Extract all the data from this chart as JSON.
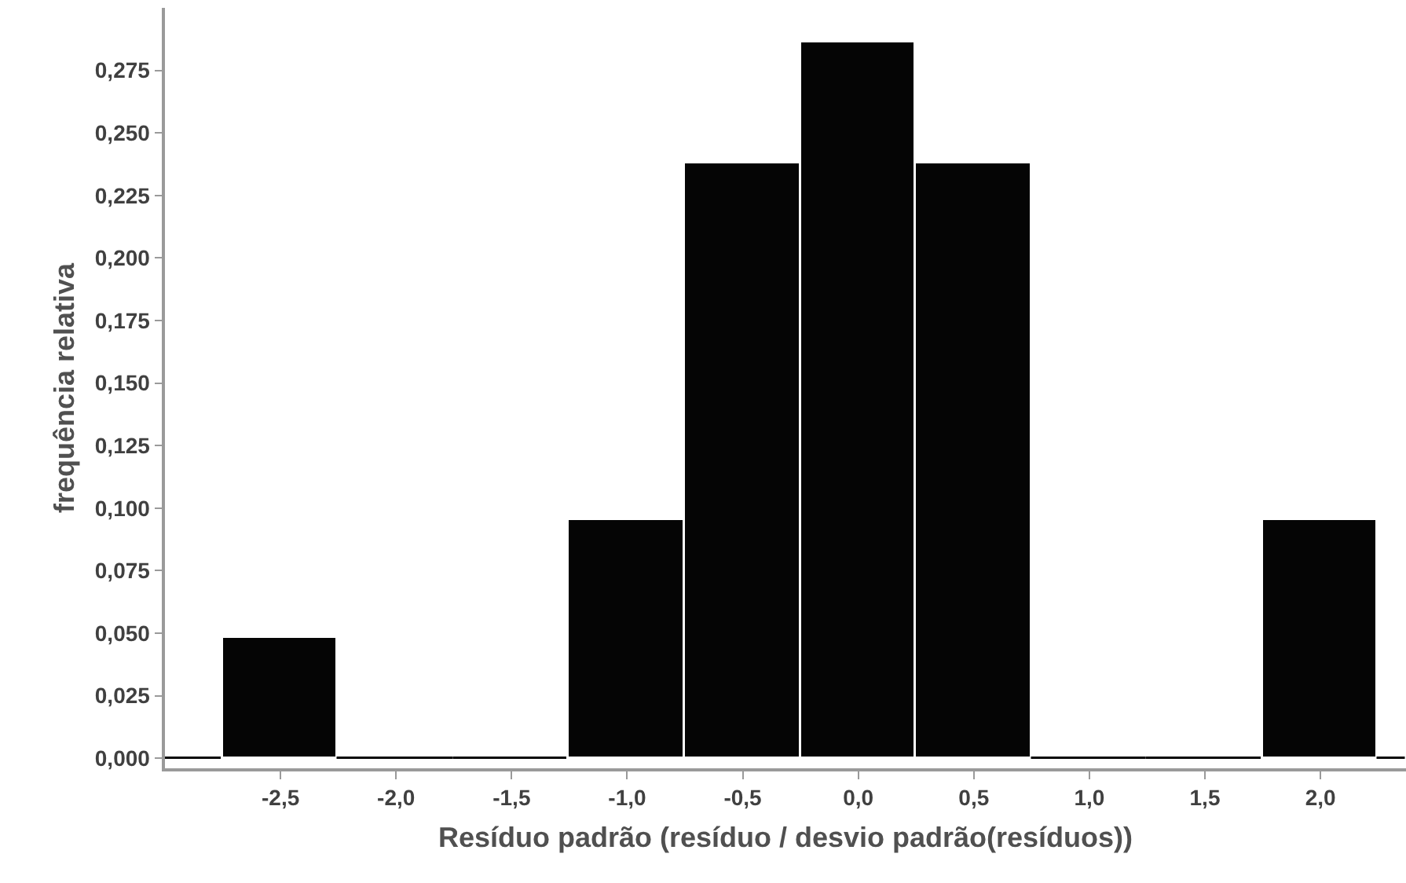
{
  "chart_data": {
    "type": "histogram",
    "xlabel": "Resíduo padrão (resíduo / desvio padrão(resíduos))",
    "ylabel": "frequência relativa",
    "bins": [
      -3.0,
      -2.75,
      -2.25,
      -1.75,
      -1.25,
      -0.75,
      -0.25,
      0.25,
      0.75,
      1.25,
      1.75,
      2.25,
      2.37
    ],
    "values": [
      0,
      0.048,
      0,
      0,
      0.095,
      0.238,
      0.286,
      0.238,
      0,
      0,
      0.095,
      0
    ],
    "color": "#050505",
    "xlim": [
      -3.0,
      2.37
    ],
    "xticks": [
      {
        "value": -2.5,
        "label": "-2,5"
      },
      {
        "value": -2.0,
        "label": "-2,0"
      },
      {
        "value": -1.5,
        "label": "-1,5"
      },
      {
        "value": -1.0,
        "label": "-1,0"
      },
      {
        "value": -0.5,
        "label": "-0,5"
      },
      {
        "value": 0.0,
        "label": "0,0"
      },
      {
        "value": 0.5,
        "label": "0,5"
      },
      {
        "value": 1.0,
        "label": "1,0"
      },
      {
        "value": 1.5,
        "label": "1,5"
      },
      {
        "value": 2.0,
        "label": "2,0"
      }
    ],
    "ylim": [
      -0.004,
      0.3
    ],
    "yticks": [
      {
        "value": 0,
        "label": "0,000"
      },
      {
        "value": 0.025,
        "label": "0,025"
      },
      {
        "value": 0.05,
        "label": "0,050"
      },
      {
        "value": 0.075,
        "label": "0,075"
      },
      {
        "value": 0.1,
        "label": "0,100"
      },
      {
        "value": 0.125,
        "label": "0,125"
      },
      {
        "value": 0.15,
        "label": "0,150"
      },
      {
        "value": 0.175,
        "label": "0,175"
      },
      {
        "value": 0.2,
        "label": "0,200"
      },
      {
        "value": 0.225,
        "label": "0,225"
      },
      {
        "value": 0.25,
        "label": "0,250"
      },
      {
        "value": 0.275,
        "label": "0,275"
      }
    ]
  }
}
